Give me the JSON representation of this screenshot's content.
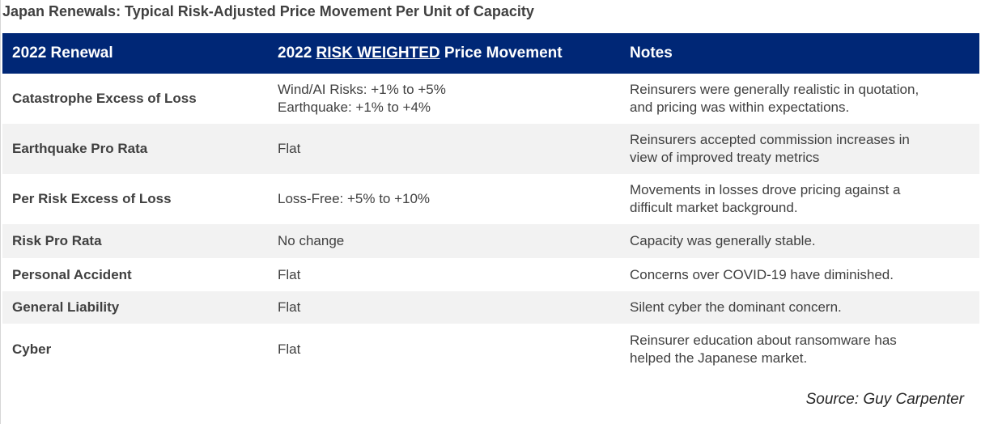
{
  "title": "Japan Renewals: Typical Risk-Adjusted Price Movement Per Unit of Capacity",
  "header": {
    "col1": "2022 Renewal",
    "col2_prefix": "2022 ",
    "col2_emphasis": "RISK WEIGHTED",
    "col2_suffix": " Price Movement",
    "col3": "Notes"
  },
  "rows": [
    {
      "renewal": "Catastrophe Excess of Loss",
      "movement": [
        "Wind/AI Risks: +1% to +5%",
        "Earthquake: +1% to +4%"
      ],
      "notes": [
        "Reinsurers were generally realistic in quotation,",
        "and pricing was within expectations."
      ]
    },
    {
      "renewal": "Earthquake Pro Rata",
      "movement": [
        "Flat"
      ],
      "notes": [
        "Reinsurers accepted commission increases in",
        "view of improved treaty metrics"
      ]
    },
    {
      "renewal": "Per Risk Excess of Loss",
      "movement": [
        "Loss-Free: +5% to +10%"
      ],
      "notes": [
        "Movements in losses drove pricing against a",
        "difficult market background."
      ]
    },
    {
      "renewal": "Risk Pro Rata",
      "movement": [
        "No change"
      ],
      "notes": [
        "Capacity was generally stable."
      ]
    },
    {
      "renewal": "Personal Accident",
      "movement": [
        "Flat"
      ],
      "notes": [
        "Concerns over COVID-19 have diminished."
      ]
    },
    {
      "renewal": "General Liability",
      "movement": [
        "Flat"
      ],
      "notes": [
        "Silent cyber the dominant concern."
      ]
    },
    {
      "renewal": "Cyber",
      "movement": [
        "Flat"
      ],
      "notes": [
        "Reinsurer education about ransomware has",
        "helped the Japanese market."
      ]
    }
  ],
  "source": "Source: Guy Carpenter",
  "colors": {
    "header_bg": "#002776",
    "header_text": "#ffffff",
    "row_alt_bg": "#f2f2f2",
    "body_text": "#404040"
  }
}
